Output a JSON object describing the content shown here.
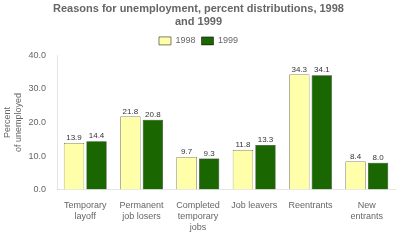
{
  "chart_data": {
    "type": "bar",
    "title": "Reasons for unemployment, percent distributions, 1998\nand 1999",
    "categories": [
      "Temporary\nlayoff",
      "Permanent\njob losers",
      "Completed\ntemporary\njobs",
      "Job leavers",
      "Reentrants",
      "New\nentrants"
    ],
    "series": [
      {
        "name": "1998",
        "color": "#FFFFAA",
        "values": [
          13.9,
          21.8,
          9.7,
          11.8,
          34.3,
          8.4
        ],
        "value_labels": [
          "13.9",
          "21.8",
          "9.7",
          "11.8",
          "34.3",
          "8.4"
        ]
      },
      {
        "name": "1999",
        "color": "#1a6600",
        "values": [
          14.4,
          20.8,
          9.3,
          13.3,
          34.1,
          8.0
        ],
        "value_labels": [
          "14.4",
          "20.8",
          "9.3",
          "13.3",
          "34.1",
          "8.0"
        ]
      }
    ],
    "ylabel": "Percent\nof unemployed",
    "ylim": [
      0,
      40.0
    ],
    "yticks": [
      {
        "value": 0,
        "label": "0.0"
      },
      {
        "value": 10,
        "label": "10.0"
      },
      {
        "value": 20,
        "label": "20.0"
      },
      {
        "value": 30,
        "label": "30.0"
      },
      {
        "value": 40,
        "label": "40.0"
      }
    ],
    "data_labels": true,
    "legend": "top",
    "grid": false
  }
}
